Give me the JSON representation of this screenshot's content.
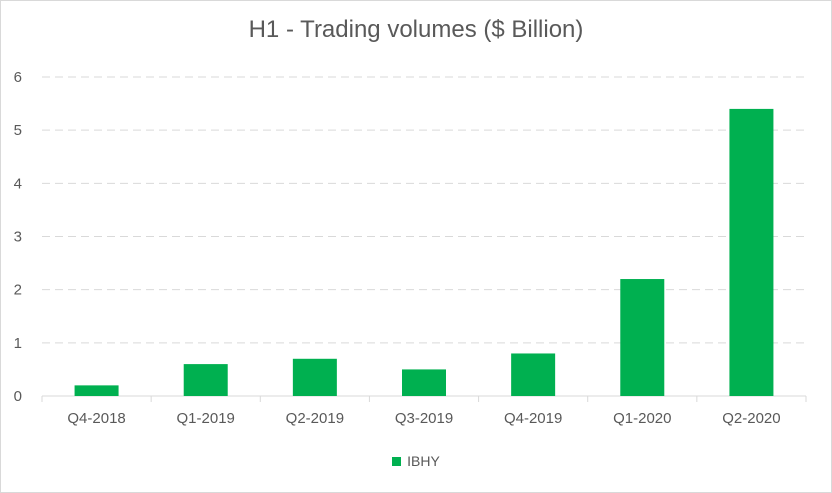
{
  "chart_data": {
    "type": "bar",
    "title": "H1 - Trading volumes ($ Billion)",
    "xlabel": "",
    "ylabel": "",
    "categories": [
      "Q4-2018",
      "Q1-2019",
      "Q2-2019",
      "Q3-2019",
      "Q4-2019",
      "Q1-2020",
      "Q2-2020"
    ],
    "series": [
      {
        "name": "IBHY",
        "values": [
          0.2,
          0.6,
          0.7,
          0.5,
          0.8,
          2.2,
          5.4
        ],
        "color": "#00b050"
      }
    ],
    "ylim": [
      0,
      6
    ],
    "yticks": [
      0,
      1,
      2,
      3,
      4,
      5,
      6
    ],
    "grid": true,
    "grid_style": "dashed",
    "legend_position": "bottom"
  }
}
